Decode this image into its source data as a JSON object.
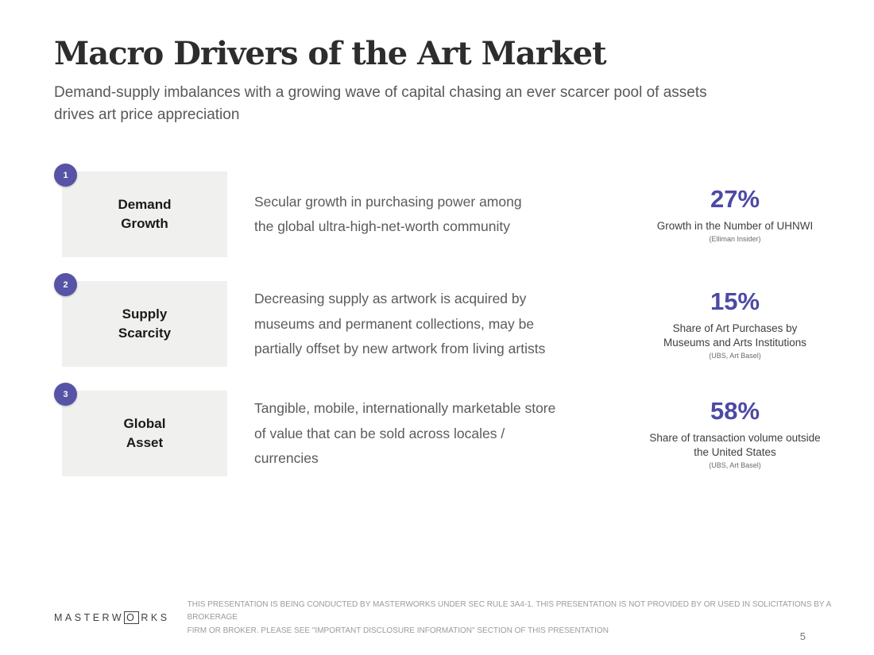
{
  "page": {
    "title": "Macro Drivers of the Art Market",
    "subtitle": "Demand-supply imbalances with a growing wave of capital chasing an ever scarcer pool of assets\ndrives art price appreciation",
    "page_number": "5"
  },
  "drivers": [
    {
      "number": "1",
      "label": "Demand\nGrowth",
      "description": "Secular growth in purchasing power among\nthe global ultra-high-net-worth community",
      "stat_value": "27%",
      "stat_label": "Growth in the Number of UHNWI",
      "stat_source": "(Elliman Insider)"
    },
    {
      "number": "2",
      "label": "Supply\nScarcity",
      "description": "Decreasing supply as artwork is acquired by\nmuseums and permanent collections, may be\npartially offset by new artwork from living artists",
      "stat_value": "15%",
      "stat_label": "Share of Art Purchases by\nMuseums and Arts Institutions",
      "stat_source": "(UBS, Art Basel)"
    },
    {
      "number": "3",
      "label": "Global\nAsset",
      "description": "Tangible, mobile, internationally marketable store\nof value that can be sold across locales /\ncurrencies",
      "stat_value": "58%",
      "stat_label": "Share of transaction volume outside\nthe United States",
      "stat_source": "(UBS, Art Basel)"
    }
  ],
  "footer": {
    "logo_prefix": "MASTERW",
    "logo_boxed_letter": "O",
    "logo_suffix": "RKS",
    "disclaimer": "THIS PRESENTATION IS BEING CONDUCTED BY MASTERWORKS UNDER SEC RULE 3A4-1. THIS PRESENTATION IS NOT PROVIDED BY OR USED IN SOLICITATIONS BY A BROKERAGE\nFIRM OR BROKER. PLEASE SEE \"IMPORTANT DISCLOSURE INFORMATION\" SECTION OF THIS PRESENTATION"
  },
  "colors": {
    "accent_purple": "#5753a7",
    "stat_purple": "#4d49a5",
    "box_gray": "#f0f0ef",
    "body_gray": "#5a5b5e"
  }
}
